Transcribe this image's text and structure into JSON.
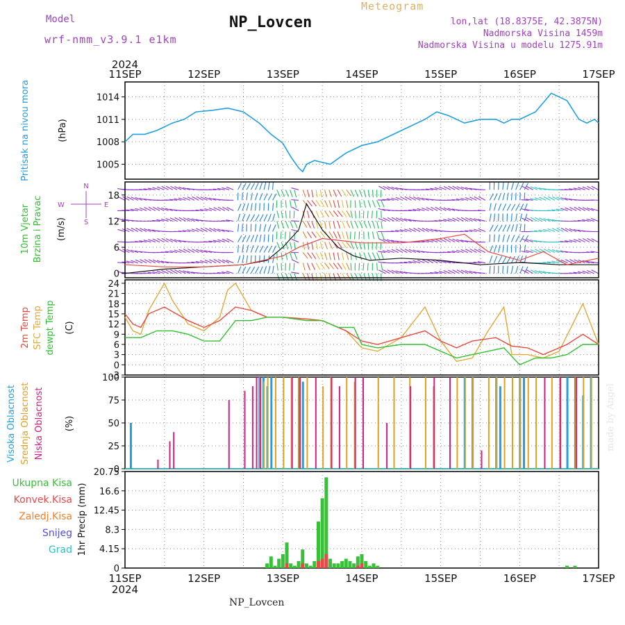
{
  "header": {
    "title": "NP_Lovcen",
    "meteogram_label": "Meteogram",
    "model_label": "Model",
    "model_name": "wrf-nmm_v3.9.1  e1km",
    "location": "lon,lat (18.8375E, 42.3875N)",
    "elevation": "Nadmorska Visina 1459m",
    "model_elevation": "Nadmorska Visina u modelu 1275.91m"
  },
  "footer": {
    "station": "NP_Lovcen",
    "credit": "made by Angel"
  },
  "time_axis": {
    "year": "2024",
    "ticks": [
      "11SEP",
      "12SEP",
      "13SEP",
      "14SEP",
      "15SEP",
      "16SEP",
      "17SEP"
    ]
  },
  "colors": {
    "pressure": "#1e9fe0",
    "temp": "#e8483c",
    "sfc": "#e0a838",
    "dewpt": "#30c030",
    "high": "#20a0e0",
    "mid": "#e0a020",
    "low": "#d02080",
    "total": "#38c038",
    "conv": "#e84848",
    "frozen": "#f08030",
    "snow": "#5050e0",
    "grad": "#30c0c0",
    "wind_arrow": "#9030d0"
  },
  "chart_data": [
    {
      "type": "line",
      "panel": "pressure",
      "ylabel_left": "Pritisak na nivou mora",
      "ylabel_unit": "(hPa)",
      "yticks": [
        "1005",
        "1008",
        "1011",
        "1014"
      ],
      "ylim": [
        1003,
        1016
      ],
      "x_days": [
        0,
        0.1,
        0.25,
        0.4,
        0.6,
        0.75,
        0.9,
        1.1,
        1.3,
        1.5,
        1.7,
        1.85,
        2.0,
        2.1,
        2.2,
        2.25,
        2.3,
        2.4,
        2.6,
        2.8,
        3.0,
        3.2,
        3.4,
        3.6,
        3.8,
        3.95,
        4.1,
        4.3,
        4.5,
        4.7,
        4.8,
        4.9,
        5.0,
        5.1,
        5.2,
        5.4,
        5.6,
        5.75,
        5.85,
        5.95,
        6.0
      ],
      "values": [
        1008,
        1009,
        1009,
        1009.5,
        1010.5,
        1011,
        1012,
        1012.2,
        1012.5,
        1012,
        1010.5,
        1009,
        1007.8,
        1006,
        1004.5,
        1004,
        1005,
        1005.5,
        1005,
        1006.5,
        1007.5,
        1008,
        1009,
        1010,
        1011,
        1012,
        1011.5,
        1010.5,
        1011,
        1011,
        1010.5,
        1011,
        1011,
        1011.5,
        1012,
        1014.5,
        1013.5,
        1011,
        1010.5,
        1011,
        1010.5
      ]
    },
    {
      "type": "line",
      "panel": "wind",
      "ylabel_left": [
        "10m Vjetar",
        "Brzina i Pravac"
      ],
      "ylabel_unit": "(m/s)",
      "compass": {
        "n": "N",
        "s": "S",
        "e": "E",
        "w": "W"
      },
      "yticks": [
        "0",
        "6",
        "12",
        "18"
      ],
      "ylim": [
        -1,
        21
      ],
      "series": [
        {
          "name": "speed",
          "x_days": [
            0,
            0.5,
            1.0,
            1.5,
            1.8,
            2.0,
            2.2,
            2.3,
            2.5,
            2.7,
            2.9,
            3.1,
            3.5,
            4.0,
            4.5,
            5.0,
            5.5,
            6.0
          ],
          "values": [
            0,
            1,
            1.5,
            2,
            3,
            6,
            10,
            16,
            10,
            6,
            4,
            3,
            3.5,
            3,
            2,
            2.5,
            2,
            2
          ]
        },
        {
          "name": "gust",
          "x_days": [
            0,
            0.5,
            1.0,
            1.5,
            2.0,
            2.2,
            2.5,
            3.0,
            3.5,
            4.0,
            4.3,
            4.6,
            5.0,
            5.3,
            5.6,
            6.0
          ],
          "values": [
            2,
            1.5,
            1.5,
            2,
            4,
            6,
            8,
            7,
            7,
            8,
            9,
            5,
            3,
            5,
            2,
            3.5
          ]
        }
      ]
    },
    {
      "type": "line",
      "panel": "temperature",
      "ylabel_left": [
        "2m Temp",
        "SFC Temp",
        "dewpt Temp"
      ],
      "ylabel_unit": "(C)",
      "yticks": [
        "-3",
        "0",
        "3",
        "6",
        "9",
        "12",
        "15",
        "18",
        "21",
        "24"
      ],
      "ylim": [
        -3,
        25
      ],
      "series": [
        {
          "name": "2m Temp",
          "x_days": [
            0,
            0.1,
            0.2,
            0.3,
            0.5,
            0.8,
            1.0,
            1.2,
            1.4,
            1.6,
            1.8,
            2.0,
            2.3,
            2.5,
            2.8,
            3.0,
            3.2,
            3.5,
            3.8,
            4.0,
            4.2,
            4.4,
            4.7,
            4.9,
            5.1,
            5.3,
            5.6,
            5.8,
            6.0
          ],
          "values": [
            15,
            12,
            11,
            15,
            17,
            13,
            11,
            13,
            17,
            16,
            14,
            14,
            13.5,
            13,
            10,
            7,
            6,
            8,
            10,
            7,
            5,
            7,
            8,
            5.5,
            5,
            3,
            6,
            9,
            6
          ]
        },
        {
          "name": "SFC Temp",
          "x_days": [
            0,
            0.1,
            0.2,
            0.3,
            0.5,
            0.6,
            0.8,
            1.0,
            1.2,
            1.3,
            1.4,
            1.6,
            1.8,
            2.0,
            2.3,
            2.5,
            2.8,
            3.0,
            3.2,
            3.5,
            3.8,
            4.0,
            4.2,
            4.4,
            4.6,
            4.8,
            4.9,
            5.1,
            5.3,
            5.5,
            5.8,
            6.0
          ],
          "values": [
            14,
            10,
            9,
            16,
            24,
            19,
            12,
            10,
            14,
            22,
            24,
            16,
            14,
            14,
            13.5,
            13,
            10,
            5,
            4,
            8,
            17,
            7,
            1,
            2,
            10,
            17,
            3,
            3,
            2,
            4,
            18,
            6
          ]
        },
        {
          "name": "dewpt Temp",
          "x_days": [
            0,
            0.2,
            0.4,
            0.6,
            0.8,
            1.0,
            1.2,
            1.4,
            1.6,
            1.8,
            2.0,
            2.3,
            2.5,
            2.7,
            2.9,
            3.0,
            3.2,
            3.5,
            3.8,
            4.0,
            4.2,
            4.4,
            4.6,
            4.8,
            5.0,
            5.2,
            5.4,
            5.6,
            5.8,
            6.0
          ],
          "values": [
            8,
            8,
            10,
            10,
            9,
            7,
            7,
            13,
            13,
            14,
            14,
            13,
            13,
            11,
            11,
            6,
            5,
            6,
            6,
            4,
            2,
            3,
            4,
            5,
            0,
            2,
            2,
            3,
            6,
            6
          ]
        }
      ]
    },
    {
      "type": "bar",
      "panel": "clouds",
      "ylabel_left": [
        "Visoka Oblacnost",
        "Srednja Oblacnost",
        "Niska Oblacnost"
      ],
      "ylabel_unit": "(%)",
      "yticks": [
        "0",
        "25",
        "50",
        "75",
        "100"
      ],
      "ylim": [
        0,
        100
      ],
      "series": [
        {
          "name": "Visoka Oblacnost",
          "x_days": [
            0.07,
            1.7,
            1.75,
            1.8,
            1.85,
            2.2,
            2.25,
            4.3,
            4.4,
            4.7,
            4.75,
            5.0,
            5.05,
            5.6,
            5.7,
            5.8,
            5.9
          ],
          "values": [
            50,
            100,
            100,
            90,
            100,
            100,
            95,
            100,
            100,
            100,
            90,
            100,
            100,
            100,
            100,
            80,
            100
          ]
        },
        {
          "name": "Srednja Oblacnost",
          "x_days": [
            1.7,
            1.75,
            1.8,
            1.9,
            2.0,
            2.1,
            2.2,
            2.3,
            2.5,
            2.6,
            2.8,
            2.9,
            3.2,
            3.4,
            3.6,
            3.8,
            3.9,
            4.2,
            4.3,
            4.4,
            4.6,
            4.7,
            4.8,
            4.9,
            5.0,
            5.1,
            5.2,
            5.4,
            5.5,
            5.7,
            5.8,
            5.9
          ],
          "values": [
            100,
            95,
            100,
            100,
            100,
            100,
            100,
            100,
            90,
            100,
            100,
            95,
            100,
            100,
            100,
            100,
            90,
            100,
            100,
            100,
            100,
            100,
            100,
            100,
            100,
            100,
            100,
            100,
            100,
            100,
            100,
            100
          ]
        },
        {
          "name": "Niska Oblacnost",
          "x_days": [
            0.4,
            0.55,
            0.6,
            1.3,
            1.5,
            1.6,
            1.65,
            1.7,
            2.1,
            2.2,
            2.4,
            2.6,
            2.7,
            2.9,
            3.0,
            3.3,
            3.6,
            3.9,
            4.1,
            4.5,
            5.3,
            5.5,
            5.7
          ],
          "values": [
            10,
            30,
            40,
            75,
            85,
            90,
            100,
            100,
            100,
            100,
            100,
            100,
            90,
            100,
            100,
            50,
            90,
            100,
            100,
            20,
            100,
            100,
            100
          ]
        }
      ]
    },
    {
      "type": "bar",
      "panel": "precip",
      "ylabel_left": [
        "Ukupna Kisa",
        "Konvek.Kisa",
        "Zaledj.Kisa",
        "Snijeg",
        "Grad"
      ],
      "ylabel_unit": "1hr Precip (mm)",
      "yticks": [
        "0",
        "4.15",
        "8.3",
        "12.45",
        "16.6",
        "20.75"
      ],
      "ylim": [
        0,
        20.75
      ],
      "series": [
        {
          "name": "Ukupna Kisa",
          "x_days": [
            1.8,
            1.85,
            1.9,
            1.95,
            2.0,
            2.05,
            2.1,
            2.15,
            2.2,
            2.25,
            2.3,
            2.35,
            2.4,
            2.45,
            2.5,
            2.55,
            2.6,
            2.65,
            2.7,
            2.75,
            2.8,
            2.85,
            2.9,
            2.95,
            3.0,
            3.05,
            3.1,
            3.15,
            3.2,
            5.6,
            5.7
          ],
          "values": [
            1,
            2.5,
            0.5,
            2,
            3,
            5.5,
            1,
            0.5,
            1.5,
            4,
            1,
            0.5,
            1.5,
            10,
            15,
            19.5,
            2,
            1,
            1,
            1.5,
            2,
            1.5,
            1,
            2.5,
            3,
            1.5,
            0.5,
            1,
            0.5,
            0.5,
            0.5
          ]
        },
        {
          "name": "Konvek.Kisa",
          "x_days": [
            2.05,
            2.25,
            2.45,
            2.5,
            2.55,
            2.95,
            3.0
          ],
          "values": [
            1,
            1,
            1.5,
            2,
            3,
            0.5,
            1
          ]
        }
      ]
    }
  ]
}
